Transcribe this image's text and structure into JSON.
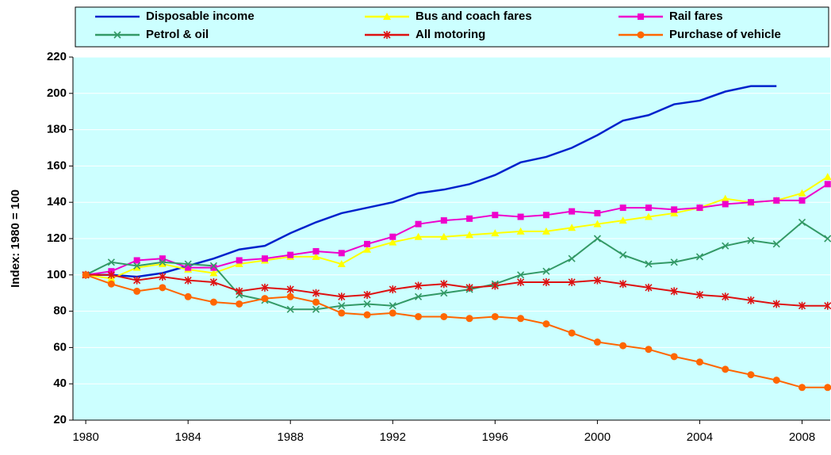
{
  "chart_data": {
    "type": "line",
    "y_label": "Index: 1980 = 100",
    "x": [
      1980,
      1981,
      1982,
      1983,
      1984,
      1985,
      1986,
      1987,
      1988,
      1989,
      1990,
      1991,
      1992,
      1993,
      1994,
      1995,
      1996,
      1997,
      1998,
      1999,
      2000,
      2001,
      2002,
      2003,
      2004,
      2005,
      2006,
      2007,
      2008,
      2009
    ],
    "xlim": [
      1979.5,
      2009.1
    ],
    "xticks": [
      1980,
      1984,
      1988,
      1992,
      1996,
      2000,
      2004,
      2008
    ],
    "ylim": [
      20,
      220
    ],
    "yticks": [
      20,
      40,
      60,
      80,
      100,
      120,
      140,
      160,
      180,
      200,
      220
    ],
    "grid": true,
    "legend": "top",
    "series": [
      {
        "name": "Disposable income",
        "color": "#0022cc",
        "marker": "none",
        "values": [
          100,
          100,
          99,
          101,
          105,
          109,
          114,
          116,
          123,
          129,
          134,
          137,
          140,
          145,
          147,
          150,
          155,
          162,
          165,
          170,
          177,
          185,
          188,
          194,
          196,
          201,
          204,
          204,
          null,
          null
        ]
      },
      {
        "name": "Bus and coach fares",
        "color": "#ffff00",
        "marker": "triangle",
        "values": [
          100,
          98,
          104,
          106,
          103,
          101,
          106,
          108,
          110,
          110,
          106,
          114,
          118,
          121,
          121,
          122,
          123,
          124,
          124,
          126,
          128,
          130,
          132,
          134,
          137,
          142,
          140,
          141,
          145,
          154
        ]
      },
      {
        "name": "Rail fares",
        "color": "#ee00cc",
        "marker": "square",
        "values": [
          100,
          102,
          108,
          109,
          104,
          104,
          108,
          109,
          111,
          113,
          112,
          117,
          121,
          128,
          130,
          131,
          133,
          132,
          133,
          135,
          134,
          137,
          137,
          136,
          137,
          139,
          140,
          141,
          141,
          150
        ]
      },
      {
        "name": "Petrol & oil",
        "color": "#339966",
        "marker": "cross",
        "values": [
          100,
          107,
          105,
          107,
          106,
          105,
          89,
          86,
          81,
          81,
          83,
          84,
          83,
          88,
          90,
          92,
          95,
          100,
          102,
          109,
          120,
          111,
          106,
          107,
          110,
          116,
          119,
          117,
          129,
          120
        ]
      },
      {
        "name": "All motoring",
        "color": "#dd1111",
        "marker": "star",
        "values": [
          100,
          100,
          97,
          99,
          97,
          96,
          91,
          93,
          92,
          90,
          88,
          89,
          92,
          94,
          95,
          93,
          94,
          96,
          96,
          96,
          97,
          95,
          93,
          91,
          89,
          88,
          86,
          84,
          83,
          83
        ]
      },
      {
        "name": "Purchase of vehicle",
        "color": "#ff6600",
        "marker": "circle",
        "values": [
          100,
          95,
          91,
          93,
          88,
          85,
          84,
          87,
          88,
          85,
          79,
          78,
          79,
          77,
          77,
          76,
          77,
          76,
          73,
          68,
          63,
          61,
          59,
          55,
          52,
          48,
          45,
          42,
          38,
          38
        ]
      }
    ]
  }
}
